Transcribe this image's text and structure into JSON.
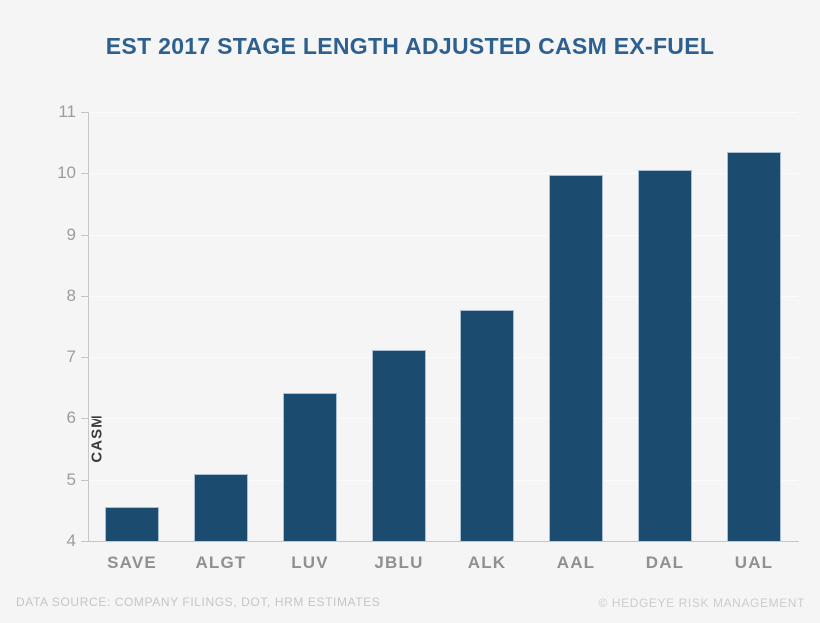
{
  "title": "EST 2017 STAGE LENGTH ADJUSTED CASM EX-FUEL",
  "footer": {
    "source": "DATA SOURCE: COMPANY FILINGS, DOT, HRM ESTIMATES",
    "copyright": "© HEDGEYE RISK MANAGEMENT"
  },
  "chart_data": {
    "type": "bar",
    "title": "EST 2017 STAGE LENGTH ADJUSTED CASM EX-FUEL",
    "categories": [
      "SAVE",
      "ALGT",
      "LUV",
      "JBLU",
      "ALK",
      "AAL",
      "DAL",
      "UAL"
    ],
    "values": [
      4.55,
      5.1,
      6.42,
      7.12,
      7.77,
      9.97,
      10.05,
      10.35
    ],
    "xlabel": "",
    "ylabel": "CASM",
    "ylim": [
      4,
      11
    ],
    "yticks": [
      4,
      5,
      6,
      7,
      8,
      9,
      10,
      11
    ],
    "grid": "faint horizontal gridlines at each integer",
    "legend": "none",
    "colors": {
      "bar_fill": "#1c4b70",
      "bar_border": "#a9c0d4",
      "title": "#2e608f",
      "background": "#f5f5f6",
      "axis": "#c6c6ca",
      "tick_labels": "#9c9ca0",
      "x_labels": "#8f9094",
      "footer_text": "#c4c5c8"
    }
  }
}
